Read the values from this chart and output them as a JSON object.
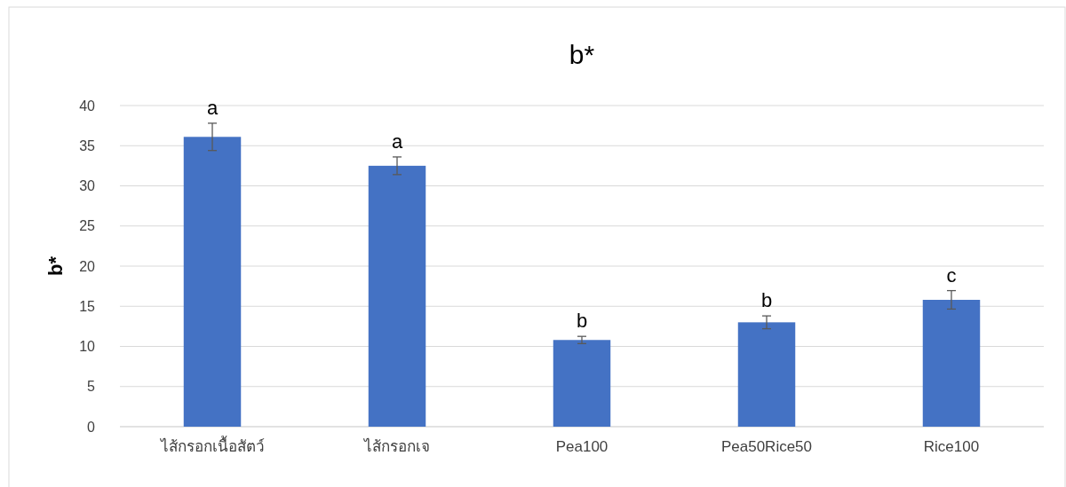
{
  "chart_data": {
    "type": "bar",
    "title": "b*",
    "ylabel": "b*",
    "categories": [
      "ไส้กรอกเนื้อสัตว์",
      "ไส้กรอกเจ",
      "Pea100",
      "Pea50Rice50",
      "Rice100"
    ],
    "values": [
      36.1,
      32.5,
      10.8,
      13.0,
      15.8
    ],
    "errors": [
      1.7,
      1.1,
      0.45,
      0.8,
      1.15
    ],
    "color": "#4472c4",
    "ylim": [
      0,
      40
    ],
    "yticks": [
      0,
      5,
      10,
      15,
      20,
      25,
      30,
      35,
      40
    ],
    "grid": "y",
    "annotations": [
      {
        "text": "a",
        "x": "ไส้กรอกเนื้อสัตว์",
        "y": 37.8
      },
      {
        "text": "a",
        "x": "ไส้กรอกเจ",
        "y": 33.6
      },
      {
        "text": "b",
        "x": "Pea100",
        "y": 11.25
      },
      {
        "text": "b",
        "x": "Pea50Rice50",
        "y": 13.8
      },
      {
        "text": "c",
        "x": "Rice100",
        "y": 16.95
      }
    ]
  }
}
